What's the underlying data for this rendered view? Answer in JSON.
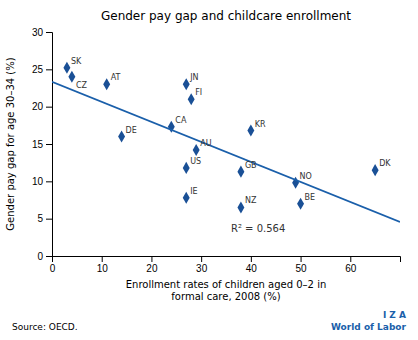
{
  "chart_data": {
    "type": "scatter",
    "title": "Gender pay gap and childcare enrollment",
    "xlabel": "Enrollment rates of children aged 0–2 in\nformal care, 2008 (%)",
    "ylabel": "Gender pay gap for age 30–34 (%)",
    "series": [
      {
        "type": "scatter",
        "marker": "diamond",
        "color": "#1a5096",
        "x": [
          3,
          4,
          11,
          14,
          24,
          27,
          28,
          29,
          27,
          27,
          40,
          38,
          38,
          49,
          50,
          65
        ],
        "values": [
          25.2,
          24.0,
          23.0,
          16.0,
          17.3,
          23.0,
          21.0,
          14.2,
          11.8,
          7.8,
          16.8,
          11.3,
          6.5,
          9.8,
          7.0,
          11.5
        ],
        "labels": [
          "SK",
          "CZ",
          "AT",
          "DE",
          "CA",
          "JN",
          "FI",
          "AU",
          "US",
          "IE",
          "KR",
          "GB",
          "NZ",
          "NO",
          "BE",
          "DK"
        ]
      },
      {
        "type": "line",
        "line_style": "solid",
        "color": "#1a5faa",
        "x": [
          0,
          70
        ],
        "values": [
          23.333,
          4.559
        ]
      }
    ],
    "annotations": [
      {
        "text": "R² = 0.564",
        "x": 36,
        "y": 3.2
      }
    ],
    "source": "Source: OECD.",
    "branding": [
      "I  Z  A",
      "World of Labor"
    ],
    "xlim": [
      0,
      70
    ],
    "ylim": [
      0,
      30
    ],
    "xticks": [
      0,
      10,
      20,
      30,
      40,
      50,
      60
    ],
    "yticks": [
      0,
      5,
      10,
      15,
      20,
      25,
      30
    ],
    "grid": false
  }
}
